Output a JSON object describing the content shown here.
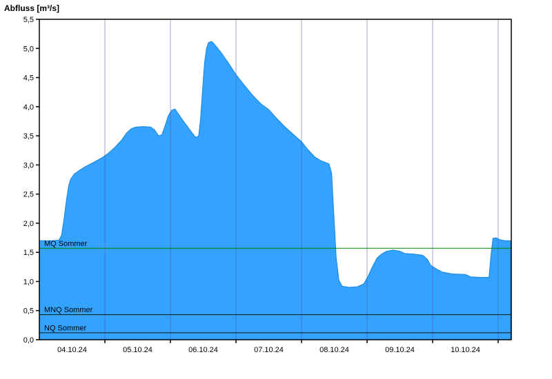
{
  "chart_data": {
    "type": "area",
    "title": "Abfluss [m³/s]",
    "unit": "m³/s",
    "fill_color": "#33a3ff",
    "line_color": "#1a86d9",
    "gridline_color": "rgba(70,80,160,0.50)",
    "axis_color": "#000000",
    "x_axis": {
      "labels": [
        "04.10.24",
        "05.10.24",
        "06.10.24",
        "07.10.24",
        "08.10.24",
        "09.10.24",
        "10.10.24"
      ],
      "label_positions_days": [
        0.5,
        1.5,
        2.5,
        3.5,
        4.5,
        5.5,
        6.5
      ],
      "gridline_positions_days": [
        1,
        2,
        3,
        4,
        5,
        6,
        7
      ],
      "domain_days": [
        0,
        7.2
      ]
    },
    "y_axis": {
      "min": 0,
      "max": 5.5,
      "tick_step": 0.5,
      "tick_labels": [
        "0,0",
        "0,5",
        "1,0",
        "1,5",
        "2,0",
        "2,5",
        "3,0",
        "3,5",
        "4,0",
        "4,5",
        "5,0",
        "5,5"
      ]
    },
    "reference_lines": [
      {
        "label": "MQ Sommer",
        "value": 1.57,
        "color": "#008000"
      },
      {
        "label": "MNQ Sommer",
        "value": 0.43,
        "color": "#0a1a0a"
      },
      {
        "label": "NQ Sommer",
        "value": 0.12,
        "color": "#0a1a0a"
      }
    ],
    "series": [
      {
        "name": "Abfluss",
        "points": [
          [
            0.0,
            1.7
          ],
          [
            0.2,
            1.7
          ],
          [
            0.3,
            1.71
          ],
          [
            0.34,
            1.8
          ],
          [
            0.38,
            2.1
          ],
          [
            0.42,
            2.45
          ],
          [
            0.45,
            2.66
          ],
          [
            0.48,
            2.76
          ],
          [
            0.53,
            2.84
          ],
          [
            0.6,
            2.9
          ],
          [
            0.7,
            2.97
          ],
          [
            0.82,
            3.04
          ],
          [
            0.95,
            3.12
          ],
          [
            1.05,
            3.2
          ],
          [
            1.15,
            3.3
          ],
          [
            1.25,
            3.42
          ],
          [
            1.33,
            3.55
          ],
          [
            1.4,
            3.62
          ],
          [
            1.47,
            3.65
          ],
          [
            1.58,
            3.66
          ],
          [
            1.7,
            3.65
          ],
          [
            1.76,
            3.6
          ],
          [
            1.82,
            3.5
          ],
          [
            1.87,
            3.52
          ],
          [
            1.92,
            3.68
          ],
          [
            1.97,
            3.85
          ],
          [
            2.02,
            3.94
          ],
          [
            2.07,
            3.96
          ],
          [
            2.12,
            3.88
          ],
          [
            2.18,
            3.78
          ],
          [
            2.26,
            3.66
          ],
          [
            2.33,
            3.55
          ],
          [
            2.39,
            3.47
          ],
          [
            2.43,
            3.5
          ],
          [
            2.46,
            3.8
          ],
          [
            2.49,
            4.3
          ],
          [
            2.52,
            4.75
          ],
          [
            2.55,
            5.0
          ],
          [
            2.58,
            5.1
          ],
          [
            2.63,
            5.12
          ],
          [
            2.68,
            5.06
          ],
          [
            2.76,
            4.95
          ],
          [
            2.88,
            4.76
          ],
          [
            3.0,
            4.55
          ],
          [
            3.12,
            4.38
          ],
          [
            3.25,
            4.2
          ],
          [
            3.38,
            4.05
          ],
          [
            3.5,
            3.95
          ],
          [
            3.62,
            3.8
          ],
          [
            3.75,
            3.65
          ],
          [
            3.88,
            3.52
          ],
          [
            4.0,
            3.4
          ],
          [
            4.1,
            3.26
          ],
          [
            4.2,
            3.14
          ],
          [
            4.3,
            3.07
          ],
          [
            4.42,
            3.02
          ],
          [
            4.46,
            2.85
          ],
          [
            4.49,
            2.2
          ],
          [
            4.53,
            1.4
          ],
          [
            4.57,
            1.02
          ],
          [
            4.62,
            0.92
          ],
          [
            4.72,
            0.9
          ],
          [
            4.85,
            0.91
          ],
          [
            4.95,
            0.96
          ],
          [
            5.02,
            1.1
          ],
          [
            5.08,
            1.25
          ],
          [
            5.15,
            1.4
          ],
          [
            5.22,
            1.47
          ],
          [
            5.3,
            1.52
          ],
          [
            5.4,
            1.54
          ],
          [
            5.5,
            1.52
          ],
          [
            5.58,
            1.48
          ],
          [
            5.72,
            1.47
          ],
          [
            5.85,
            1.45
          ],
          [
            5.92,
            1.38
          ],
          [
            5.97,
            1.28
          ],
          [
            6.05,
            1.22
          ],
          [
            6.15,
            1.16
          ],
          [
            6.3,
            1.13
          ],
          [
            6.5,
            1.12
          ],
          [
            6.58,
            1.08
          ],
          [
            6.72,
            1.07
          ],
          [
            6.86,
            1.07
          ],
          [
            6.89,
            1.45
          ],
          [
            6.92,
            1.74
          ],
          [
            6.97,
            1.75
          ],
          [
            7.02,
            1.72
          ],
          [
            7.1,
            1.7
          ],
          [
            7.19,
            1.7
          ]
        ]
      }
    ]
  }
}
